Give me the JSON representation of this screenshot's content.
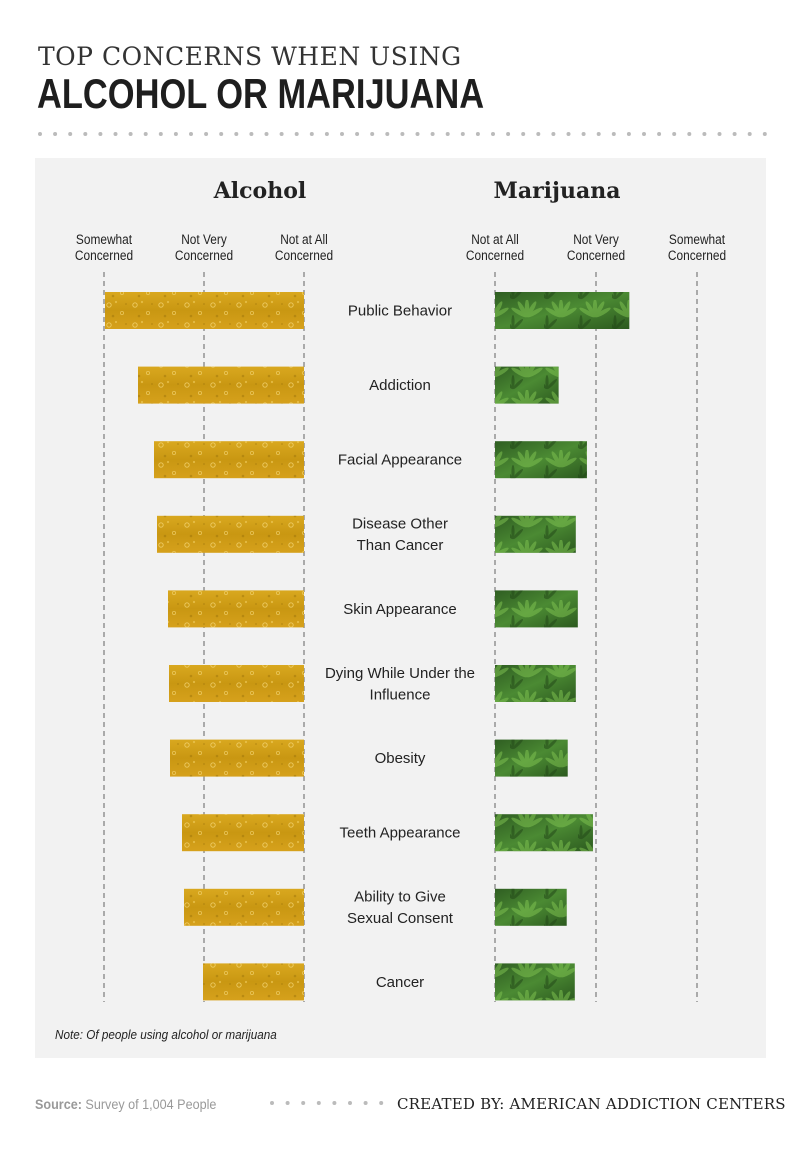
{
  "header": {
    "title_line1": "TOP CONCERNS WHEN USING",
    "title_line2": "ALCOHOL OR MARIJUANA"
  },
  "colors": {
    "alcohol": "#d4a21a",
    "marijuana": "#3f7a2c",
    "panel": "#f2f2f2"
  },
  "chart_data": {
    "type": "bar",
    "categories": [
      "Public Behavior",
      "Addiction",
      "Facial Appearance",
      "Disease Other Than Cancer",
      "Skin Appearance",
      "Dying While Under the Influence",
      "Obesity",
      "Teeth Appearance",
      "Ability to Give Sexual Consent",
      "Cancer"
    ],
    "category_lines": [
      [
        "Public Behavior"
      ],
      [
        "Addiction"
      ],
      [
        "Facial Appearance"
      ],
      [
        "Disease Other",
        "Than Cancer"
      ],
      [
        "Skin Appearance"
      ],
      [
        "Dying While Under the",
        "Influence"
      ],
      [
        "Obesity"
      ],
      [
        "Teeth Appearance"
      ],
      [
        "Ability to Give",
        "Sexual Consent"
      ],
      [
        "Cancer"
      ]
    ],
    "scale_labels": [
      "Not at All Concerned",
      "Not Very Concerned",
      "Somewhat Concerned"
    ],
    "scale_range": [
      1,
      3
    ],
    "series": [
      {
        "name": "Alcohol",
        "values": [
          2.99,
          2.66,
          2.5,
          2.47,
          2.36,
          2.35,
          2.34,
          2.22,
          2.2,
          2.01
        ]
      },
      {
        "name": "Marijuana",
        "values": [
          2.33,
          1.63,
          1.91,
          1.8,
          1.82,
          1.8,
          1.72,
          1.97,
          1.71,
          1.79
        ]
      }
    ],
    "note": "Note: Of people using alcohol or marijuana"
  },
  "footer": {
    "source_label": "Source:",
    "source_text": "Survey of 1,004 People",
    "credit": "CREATED BY: AMERICAN ADDICTION CENTERS"
  }
}
